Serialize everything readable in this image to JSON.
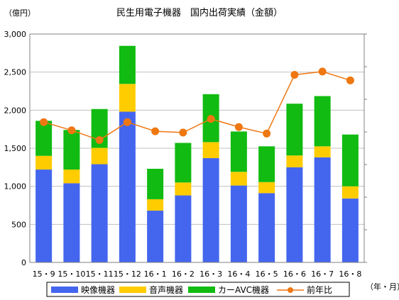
{
  "chart_data": {
    "type": "bar",
    "stacked": true,
    "title": "民生用電子機器　国内出荷実績（金額）",
    "ylabel": "（億円）",
    "xlabel": "（年・月）",
    "categories": [
      "15・9",
      "15・10",
      "15・11",
      "15・12",
      "16・1",
      "16・2",
      "16・3",
      "16・4",
      "16・5",
      "16・6",
      "16・7",
      "16・8"
    ],
    "ylim": [
      0,
      3000
    ],
    "yticks": [
      0,
      500,
      1000,
      1500,
      2000,
      2500,
      3000
    ],
    "ytick_labels": [
      "0",
      "500",
      "1,000",
      "1,500",
      "2,000",
      "2,500",
      "3,000"
    ],
    "series": [
      {
        "name": "映像機器",
        "color": "#4466ee",
        "values": [
          1220,
          1040,
          1290,
          1980,
          680,
          880,
          1370,
          1010,
          910,
          1250,
          1380,
          840
        ]
      },
      {
        "name": "音声機器",
        "color": "#ffcc00",
        "values": [
          180,
          180,
          215,
          365,
          150,
          170,
          210,
          180,
          145,
          155,
          145,
          160
        ]
      },
      {
        "name": "カーAVC機器",
        "color": "#11bb11",
        "values": [
          460,
          520,
          510,
          500,
          400,
          520,
          630,
          530,
          470,
          680,
          660,
          680
        ]
      }
    ],
    "line_series": {
      "name": "前年比",
      "color": "#ee7711",
      "values": [
        103,
        100.5,
        97.5,
        103,
        100.2,
        99.8,
        104,
        101.5,
        99.5,
        117.5,
        118.5,
        115.8
      ]
    },
    "legend_position": "bottom"
  }
}
